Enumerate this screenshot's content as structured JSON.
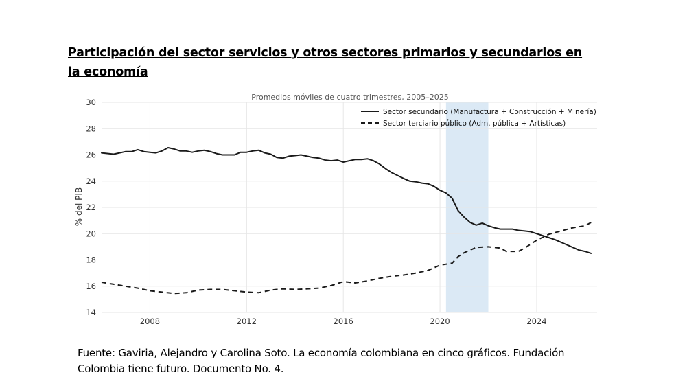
{
  "page": {
    "heading": "Participación del sector servicios y otros sectores primarios y secundarios en la economía",
    "source": "Fuente: Gaviria, Alejandro y Carolina Soto. La economía colombiana en cinco gráficos. Fundación Colombia tiene futuro. Documento No. 4."
  },
  "colors": {
    "line": "#1a1a1a",
    "grid": "#e6e6e6",
    "shade": "#dbe9f5",
    "axis_text": "#333333"
  },
  "chart_data": {
    "type": "line",
    "title": "Promedios móviles de cuatro trimestres, 2005–2025",
    "xlabel": "",
    "ylabel": "% del PIB",
    "xlim": [
      2006,
      2026.5
    ],
    "ylim": [
      14,
      30
    ],
    "xticks": [
      2008,
      2012,
      2016,
      2020,
      2024
    ],
    "yticks": [
      14,
      16,
      18,
      20,
      22,
      24,
      26,
      28,
      30
    ],
    "grid": true,
    "legend_position": "top-right",
    "shaded_range": [
      2020.25,
      2022.0
    ],
    "series": [
      {
        "name": "Sector secundario (Manufactura + Construcción + Minería)",
        "style": "solid",
        "points": [
          [
            2006.0,
            26.15
          ],
          [
            2006.5,
            26.05
          ],
          [
            2007.0,
            26.25
          ],
          [
            2007.25,
            26.25
          ],
          [
            2007.5,
            26.4
          ],
          [
            2007.75,
            26.25
          ],
          [
            2008.0,
            26.2
          ],
          [
            2008.25,
            26.15
          ],
          [
            2008.5,
            26.3
          ],
          [
            2008.75,
            26.55
          ],
          [
            2009.0,
            26.45
          ],
          [
            2009.25,
            26.3
          ],
          [
            2009.5,
            26.3
          ],
          [
            2009.75,
            26.2
          ],
          [
            2010.0,
            26.3
          ],
          [
            2010.25,
            26.35
          ],
          [
            2010.5,
            26.25
          ],
          [
            2010.75,
            26.1
          ],
          [
            2011.0,
            26.0
          ],
          [
            2011.5,
            26.0
          ],
          [
            2011.75,
            26.2
          ],
          [
            2012.0,
            26.2
          ],
          [
            2012.25,
            26.3
          ],
          [
            2012.5,
            26.35
          ],
          [
            2012.75,
            26.15
          ],
          [
            2013.0,
            26.05
          ],
          [
            2013.25,
            25.8
          ],
          [
            2013.5,
            25.75
          ],
          [
            2013.75,
            25.9
          ],
          [
            2014.0,
            25.95
          ],
          [
            2014.25,
            26.0
          ],
          [
            2014.5,
            25.9
          ],
          [
            2014.75,
            25.8
          ],
          [
            2015.0,
            25.75
          ],
          [
            2015.25,
            25.6
          ],
          [
            2015.5,
            25.55
          ],
          [
            2015.75,
            25.6
          ],
          [
            2016.0,
            25.45
          ],
          [
            2016.25,
            25.55
          ],
          [
            2016.5,
            25.65
          ],
          [
            2016.75,
            25.65
          ],
          [
            2017.0,
            25.7
          ],
          [
            2017.25,
            25.55
          ],
          [
            2017.5,
            25.3
          ],
          [
            2017.75,
            24.95
          ],
          [
            2018.0,
            24.65
          ],
          [
            2018.5,
            24.2
          ],
          [
            2018.75,
            24.0
          ],
          [
            2019.0,
            23.95
          ],
          [
            2019.25,
            23.85
          ],
          [
            2019.5,
            23.8
          ],
          [
            2019.75,
            23.6
          ],
          [
            2020.0,
            23.3
          ],
          [
            2020.25,
            23.1
          ],
          [
            2020.5,
            22.7
          ],
          [
            2020.75,
            21.75
          ],
          [
            2021.0,
            21.25
          ],
          [
            2021.25,
            20.85
          ],
          [
            2021.5,
            20.65
          ],
          [
            2021.75,
            20.8
          ],
          [
            2022.0,
            20.6
          ],
          [
            2022.25,
            20.45
          ],
          [
            2022.5,
            20.35
          ],
          [
            2022.75,
            20.35
          ],
          [
            2023.0,
            20.35
          ],
          [
            2023.25,
            20.25
          ],
          [
            2023.5,
            20.2
          ],
          [
            2023.75,
            20.15
          ],
          [
            2024.0,
            20.0
          ],
          [
            2024.25,
            19.85
          ],
          [
            2024.5,
            19.7
          ],
          [
            2024.75,
            19.55
          ],
          [
            2025.0,
            19.35
          ],
          [
            2025.25,
            19.15
          ],
          [
            2025.5,
            18.95
          ],
          [
            2025.75,
            18.75
          ],
          [
            2026.0,
            18.65
          ],
          [
            2026.25,
            18.5
          ]
        ]
      },
      {
        "name": "Sector terciario público (Adm. pública + Artísticas)",
        "style": "dashed",
        "points": [
          [
            2006.0,
            16.3
          ],
          [
            2006.5,
            16.15
          ],
          [
            2007.0,
            16.0
          ],
          [
            2007.5,
            15.85
          ],
          [
            2008.0,
            15.65
          ],
          [
            2008.5,
            15.55
          ],
          [
            2009.0,
            15.45
          ],
          [
            2009.5,
            15.5
          ],
          [
            2010.0,
            15.7
          ],
          [
            2010.5,
            15.75
          ],
          [
            2011.0,
            15.75
          ],
          [
            2011.5,
            15.65
          ],
          [
            2012.0,
            15.55
          ],
          [
            2012.5,
            15.5
          ],
          [
            2013.0,
            15.7
          ],
          [
            2013.5,
            15.8
          ],
          [
            2014.0,
            15.75
          ],
          [
            2014.5,
            15.8
          ],
          [
            2015.0,
            15.85
          ],
          [
            2015.5,
            16.05
          ],
          [
            2016.0,
            16.35
          ],
          [
            2016.5,
            16.25
          ],
          [
            2017.0,
            16.4
          ],
          [
            2017.5,
            16.6
          ],
          [
            2018.0,
            16.75
          ],
          [
            2018.5,
            16.85
          ],
          [
            2019.0,
            17.0
          ],
          [
            2019.5,
            17.2
          ],
          [
            2020.0,
            17.6
          ],
          [
            2020.5,
            17.75
          ],
          [
            2020.75,
            18.25
          ],
          [
            2021.0,
            18.55
          ],
          [
            2021.5,
            18.95
          ],
          [
            2022.0,
            19.0
          ],
          [
            2022.5,
            18.9
          ],
          [
            2022.75,
            18.65
          ],
          [
            2023.25,
            18.65
          ],
          [
            2023.5,
            18.9
          ],
          [
            2024.0,
            19.5
          ],
          [
            2024.5,
            19.95
          ],
          [
            2025.0,
            20.2
          ],
          [
            2025.5,
            20.45
          ],
          [
            2026.0,
            20.6
          ],
          [
            2026.25,
            20.85
          ]
        ]
      }
    ]
  }
}
